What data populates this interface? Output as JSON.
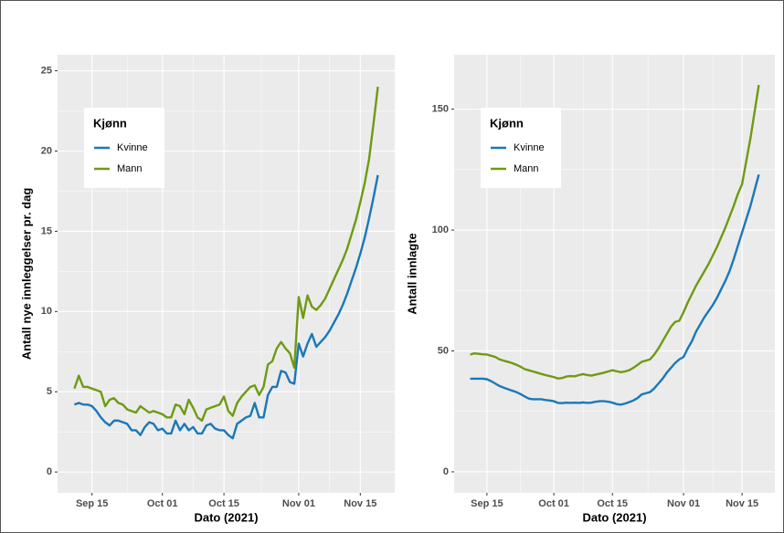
{
  "chart_data": [
    {
      "type": "line",
      "x": [
        "Sep 11",
        "Sep 12",
        "Sep 13",
        "Sep 14",
        "Sep 15",
        "Sep 16",
        "Sep 17",
        "Sep 18",
        "Sep 19",
        "Sep 20",
        "Sep 21",
        "Sep 22",
        "Sep 23",
        "Sep 24",
        "Sep 25",
        "Sep 26",
        "Sep 27",
        "Sep 28",
        "Sep 29",
        "Sep 30",
        "Oct 01",
        "Oct 02",
        "Oct 03",
        "Oct 04",
        "Oct 05",
        "Oct 06",
        "Oct 07",
        "Oct 08",
        "Oct 09",
        "Oct 10",
        "Oct 11",
        "Oct 12",
        "Oct 13",
        "Oct 14",
        "Oct 15",
        "Oct 16",
        "Oct 17",
        "Oct 18",
        "Oct 19",
        "Oct 20",
        "Oct 21",
        "Oct 22",
        "Oct 23",
        "Oct 24",
        "Oct 25",
        "Oct 26",
        "Oct 27",
        "Oct 28",
        "Oct 29",
        "Oct 30",
        "Oct 31",
        "Nov 01",
        "Nov 02",
        "Nov 03",
        "Nov 04",
        "Nov 05",
        "Nov 06",
        "Nov 07",
        "Nov 08",
        "Nov 09",
        "Nov 10",
        "Nov 11",
        "Nov 12",
        "Nov 13",
        "Nov 14",
        "Nov 15",
        "Nov 16",
        "Nov 17",
        "Nov 18",
        "Nov 19"
      ],
      "series": [
        {
          "name": "Kvinne",
          "color": "#1a78b8",
          "values": [
            4.2,
            4.3,
            4.2,
            4.2,
            4.1,
            3.8,
            3.4,
            3.1,
            2.9,
            3.2,
            3.2,
            3.1,
            3.0,
            2.6,
            2.6,
            2.3,
            2.8,
            3.1,
            3.0,
            2.6,
            2.7,
            2.4,
            2.4,
            3.2,
            2.6,
            3.0,
            2.6,
            2.8,
            2.4,
            2.4,
            2.9,
            3.0,
            2.7,
            2.6,
            2.6,
            2.3,
            2.1,
            3.0,
            3.2,
            3.4,
            3.5,
            4.3,
            3.4,
            3.4,
            4.8,
            5.3,
            5.3,
            6.3,
            6.2,
            5.6,
            5.5,
            8.0,
            7.2,
            8.0,
            8.6,
            7.8,
            8.1,
            8.4,
            8.8,
            9.3,
            9.8,
            10.4,
            11.1,
            11.9,
            12.7,
            13.6,
            14.6,
            15.8,
            17.1,
            18.5
          ]
        },
        {
          "name": "Mann",
          "color": "#6f9a12",
          "values": [
            5.2,
            6.0,
            5.3,
            5.3,
            5.2,
            5.1,
            5.0,
            4.1,
            4.5,
            4.6,
            4.3,
            4.2,
            3.9,
            3.8,
            3.7,
            4.1,
            3.9,
            3.7,
            3.8,
            3.7,
            3.6,
            3.4,
            3.4,
            4.2,
            4.1,
            3.6,
            4.5,
            4.0,
            3.4,
            3.2,
            3.9,
            4.0,
            4.1,
            4.2,
            4.7,
            3.8,
            3.5,
            4.3,
            4.7,
            5.0,
            5.3,
            5.4,
            4.8,
            5.3,
            6.7,
            6.9,
            7.7,
            8.1,
            7.7,
            7.4,
            6.5,
            10.9,
            9.6,
            11.0,
            10.3,
            10.1,
            10.4,
            10.8,
            11.4,
            12.0,
            12.6,
            13.2,
            13.9,
            14.8,
            15.7,
            16.8,
            18.0,
            19.5,
            21.7,
            24.0
          ]
        }
      ],
      "xticks": [
        "Sep 15",
        "Oct 01",
        "Oct 15",
        "Nov 01",
        "Nov 15"
      ],
      "ylim": [
        -1.3,
        26
      ],
      "yticks": [
        0,
        5,
        10,
        15,
        20,
        25
      ],
      "x_label": "Dato (2021)",
      "y_label": "Antall nye innleggelser pr. dag",
      "legend_title": "Kjønn",
      "legend": "top-left",
      "grid": true
    },
    {
      "type": "line",
      "x": [
        "Sep 11",
        "Sep 12",
        "Sep 13",
        "Sep 14",
        "Sep 15",
        "Sep 16",
        "Sep 17",
        "Sep 18",
        "Sep 19",
        "Sep 20",
        "Sep 21",
        "Sep 22",
        "Sep 23",
        "Sep 24",
        "Sep 25",
        "Sep 26",
        "Sep 27",
        "Sep 28",
        "Sep 29",
        "Sep 30",
        "Oct 01",
        "Oct 02",
        "Oct 03",
        "Oct 04",
        "Oct 05",
        "Oct 06",
        "Oct 07",
        "Oct 08",
        "Oct 09",
        "Oct 10",
        "Oct 11",
        "Oct 12",
        "Oct 13",
        "Oct 14",
        "Oct 15",
        "Oct 16",
        "Oct 17",
        "Oct 18",
        "Oct 19",
        "Oct 20",
        "Oct 21",
        "Oct 22",
        "Oct 23",
        "Oct 24",
        "Oct 25",
        "Oct 26",
        "Oct 27",
        "Oct 28",
        "Oct 29",
        "Oct 30",
        "Oct 31",
        "Nov 01",
        "Nov 02",
        "Nov 03",
        "Nov 04",
        "Nov 05",
        "Nov 06",
        "Nov 07",
        "Nov 08",
        "Nov 09",
        "Nov 10",
        "Nov 11",
        "Nov 12",
        "Nov 13",
        "Nov 14",
        "Nov 15",
        "Nov 16",
        "Nov 17",
        "Nov 18",
        "Nov 19"
      ],
      "series": [
        {
          "name": "Kvinne",
          "color": "#1a78b8",
          "values": [
            38.5,
            38.5,
            38.5,
            38.5,
            38.3,
            37.5,
            36.5,
            35.5,
            34.8,
            34.2,
            33.6,
            33.0,
            32.2,
            31.2,
            30.3,
            30.0,
            30.0,
            30.0,
            29.7,
            29.5,
            29.2,
            28.5,
            28.4,
            28.6,
            28.5,
            28.6,
            28.5,
            28.7,
            28.5,
            28.6,
            29.0,
            29.2,
            29.2,
            29.0,
            28.6,
            28.0,
            27.8,
            28.2,
            28.8,
            29.5,
            30.5,
            32.0,
            32.5,
            33.0,
            34.5,
            36.5,
            38.5,
            41.0,
            43.0,
            45.0,
            46.5,
            47.5,
            51.0,
            54.0,
            58.0,
            61.0,
            64.0,
            66.5,
            69.0,
            72.0,
            75.5,
            79.0,
            83.0,
            88.0,
            93.5,
            99.0,
            104.5,
            110.0,
            116.5,
            123.0
          ]
        },
        {
          "name": "Mann",
          "color": "#6f9a12",
          "values": [
            48.5,
            49.0,
            48.8,
            48.6,
            48.5,
            48.0,
            47.5,
            46.5,
            46.0,
            45.5,
            45.0,
            44.3,
            43.5,
            42.5,
            42.0,
            41.5,
            41.0,
            40.5,
            40.0,
            39.6,
            39.2,
            38.6,
            38.8,
            39.4,
            39.6,
            39.5,
            40.0,
            40.4,
            40.0,
            39.8,
            40.2,
            40.6,
            41.0,
            41.5,
            42.0,
            41.6,
            41.2,
            41.5,
            42.0,
            43.0,
            44.2,
            45.5,
            46.0,
            46.5,
            48.5,
            51.0,
            54.0,
            57.0,
            60.0,
            62.0,
            62.5,
            66.0,
            70.0,
            73.5,
            77.0,
            80.0,
            83.0,
            86.0,
            89.5,
            93.0,
            97.0,
            101.0,
            105.5,
            110.0,
            115.0,
            119.0,
            128.5,
            138.0,
            149.0,
            160.0
          ]
        }
      ],
      "xticks": [
        "Sep 15",
        "Oct 01",
        "Oct 15",
        "Nov 01",
        "Nov 15"
      ],
      "ylim": [
        -8.7,
        172.5
      ],
      "yticks": [
        0,
        50,
        100,
        150
      ],
      "x_label": "Dato (2021)",
      "y_label": "Antall innlagte",
      "legend_title": "Kjønn",
      "legend": "top-left",
      "grid": true
    }
  ]
}
